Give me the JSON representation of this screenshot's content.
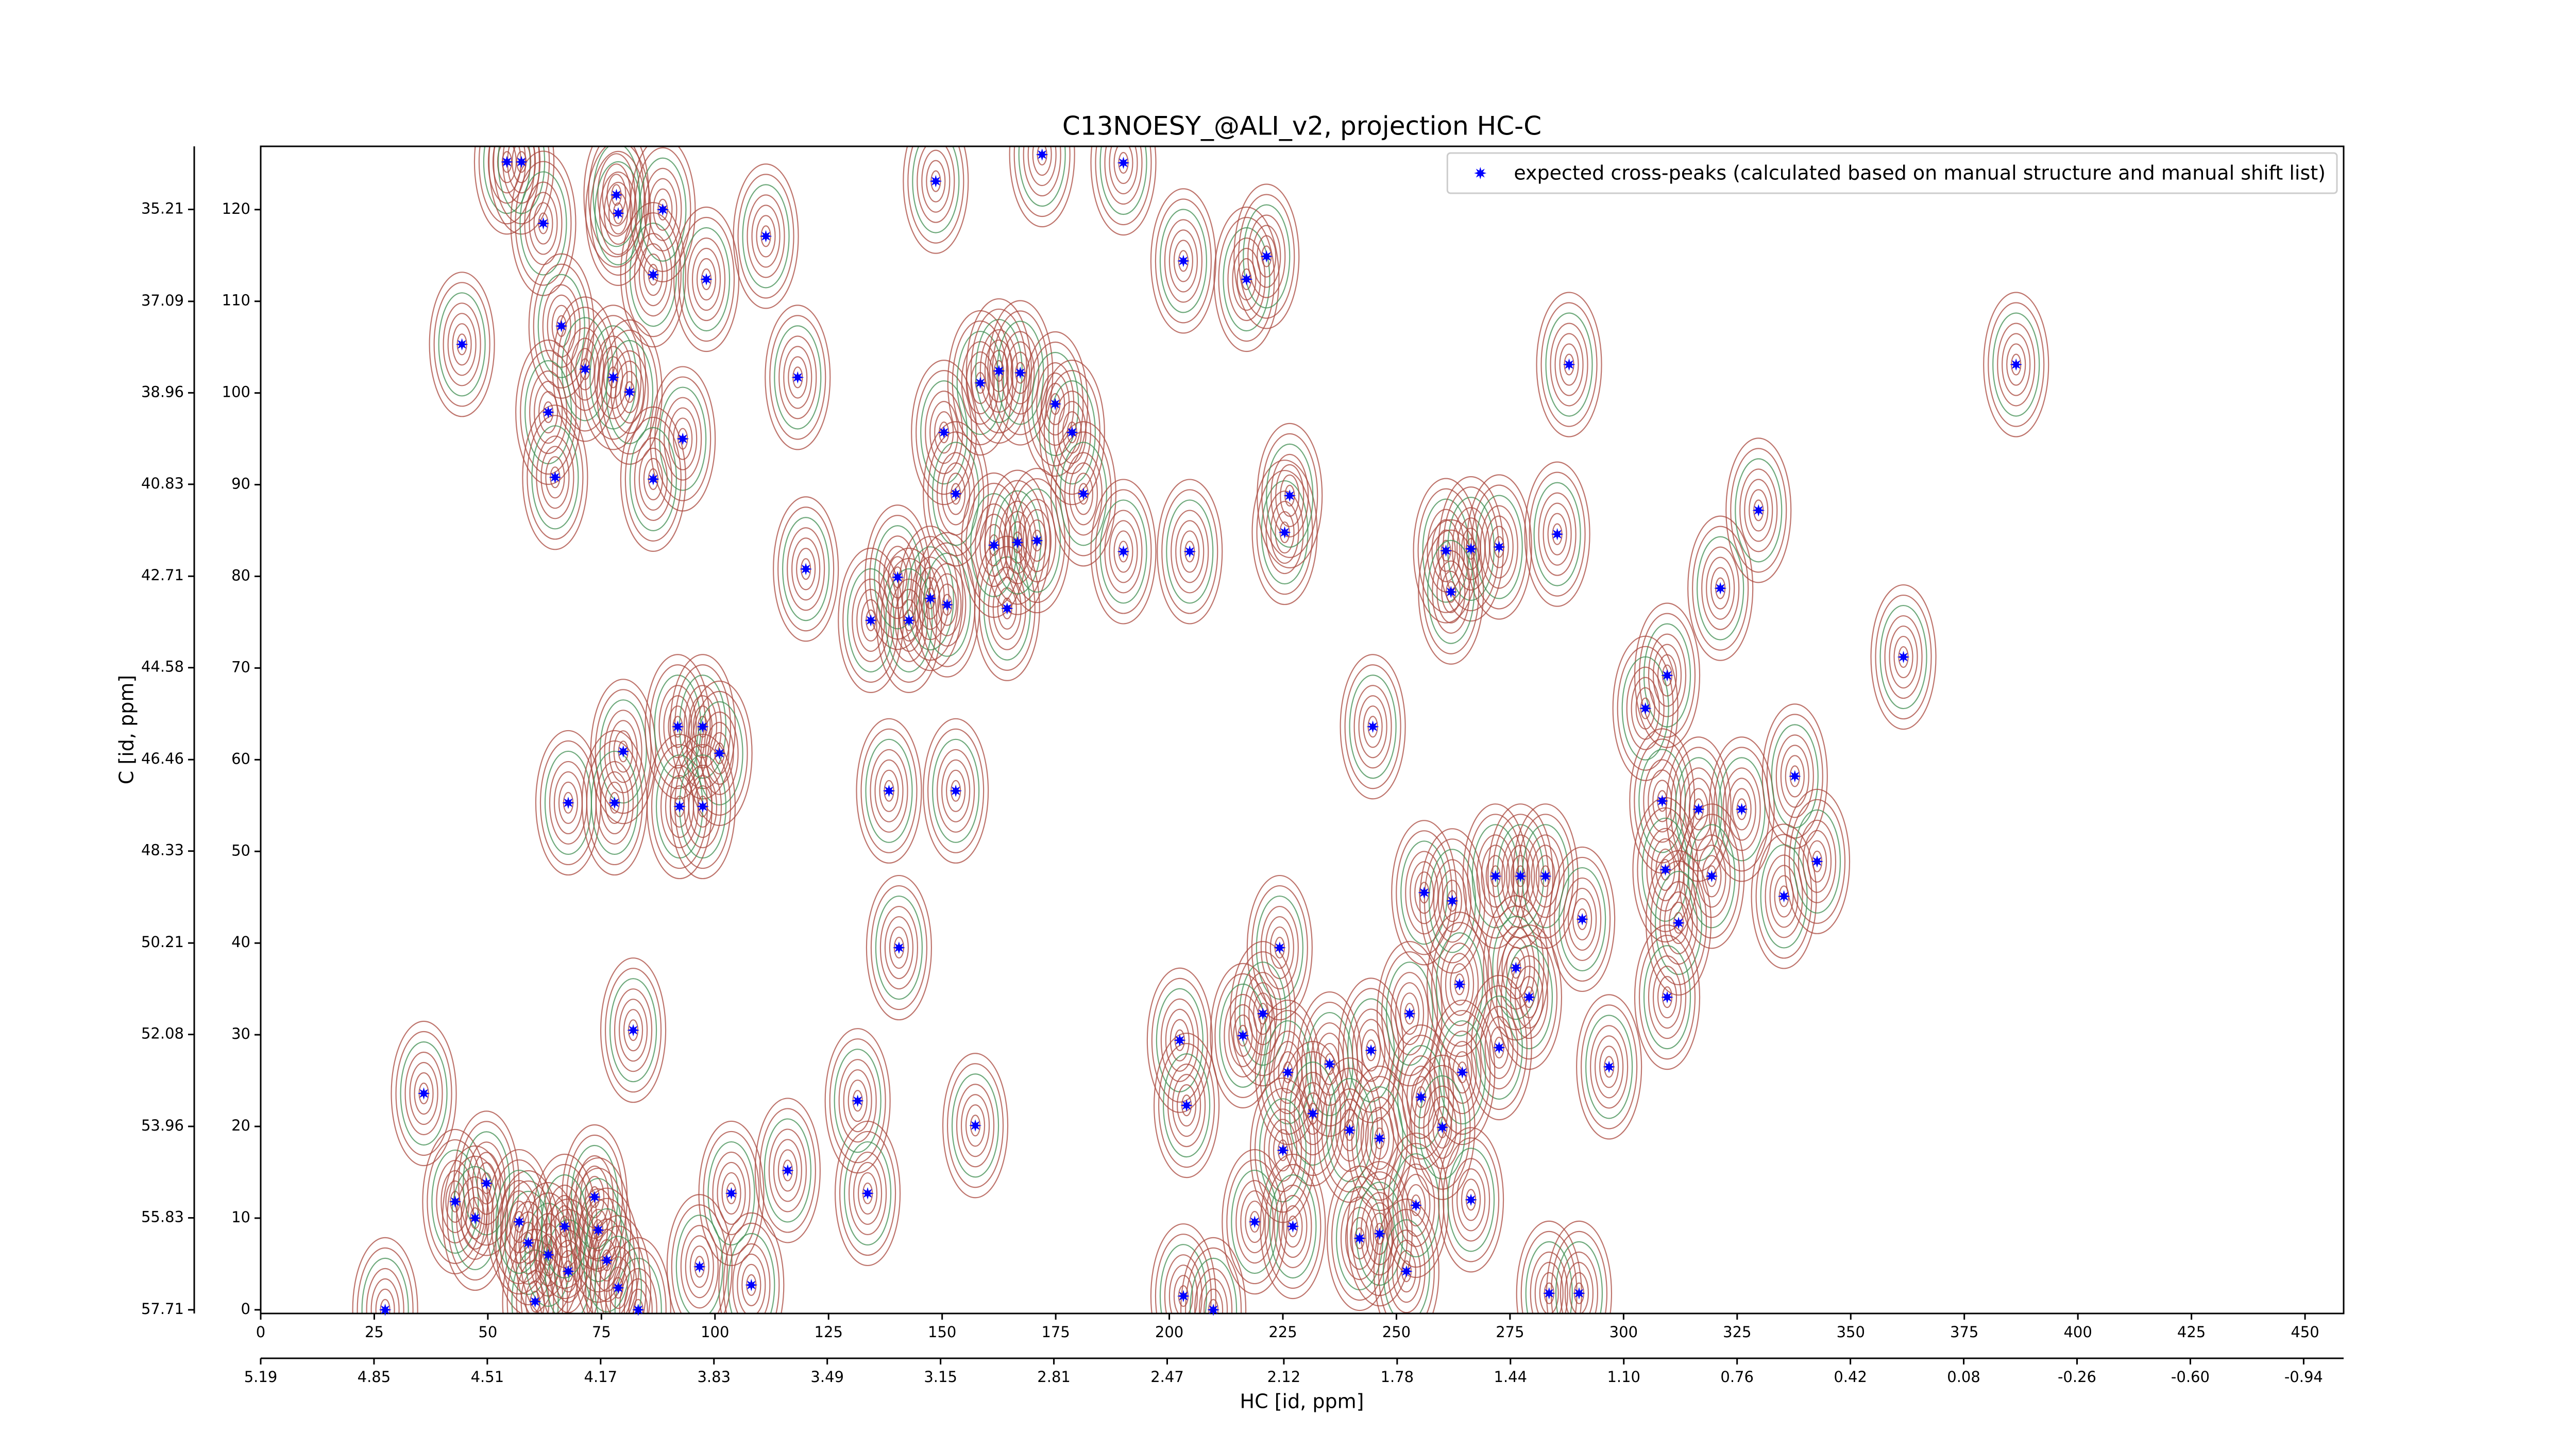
{
  "chart_data": {
    "type": "scatter",
    "title": "C13NOESY_@ALI_v2, projection HC-C",
    "xlabel": "HC [id, ppm]",
    "ylabel": "C [id, ppm]",
    "xlim": [
      0,
      458.5
    ],
    "xticks": [
      0,
      25,
      50,
      75,
      100,
      125,
      150,
      175,
      200,
      225,
      250,
      275,
      300,
      325,
      350,
      375,
      400,
      425,
      450
    ],
    "x2lim": [
      5.19,
      -1.06
    ],
    "x2ticks": [
      5.19,
      4.85,
      4.51,
      4.17,
      3.83,
      3.49,
      3.15,
      2.81,
      2.47,
      2.12,
      1.78,
      1.44,
      {
        "value": 1.1,
        "label": "1.10"
      },
      0.76,
      0.42,
      0.08,
      -0.26,
      {
        "value": -0.6,
        "label": "-0.60"
      },
      -0.94
    ],
    "ylim": [
      -0.4,
      126.9
    ],
    "yticks": [
      0,
      10,
      20,
      30,
      40,
      50,
      60,
      70,
      80,
      90,
      100,
      110,
      120
    ],
    "y2lim": [
      57.785,
      33.92
    ],
    "y2ticks": [
      57.71,
      55.83,
      53.96,
      52.08,
      50.21,
      48.33,
      46.46,
      44.58,
      42.71,
      40.83,
      38.96,
      37.09,
      35.21
    ],
    "legend": "upper right",
    "series": [
      {
        "name": "expected cross-peaks (calculated based on manual structure and manual shift list)",
        "color": "#0000ff",
        "x": [
          27.4,
          35.9,
          44.3,
          54.2,
          57.4,
          62.2,
          66.2,
          71.4,
          63.3,
          64.8,
          77.6,
          81.2,
          86.4,
          78.3,
          78.7,
          88.5,
          98.1,
          92.9,
          86.4,
          111.2,
          118.2,
          79.8,
          67.7,
          77.9,
          91.8,
          97.3,
          101.0,
          92.2,
          97.3,
          120.0,
          134.3,
          140.2,
          142.7,
          147.4,
          151.1,
          164.3,
          150.4,
          153.0,
          148.6,
          161.4,
          166.6,
          170.9,
          158.4,
          162.5,
          167.2,
          174.9,
          178.6,
          181.1,
          172.0,
          189.9,
          203.1,
          217.0,
          221.4,
          189.9,
          204.5,
          225.4,
          226.5,
          138.3,
          153.0,
          140.5,
          244.8,
          288.0,
          386.4,
          256.1,
          262.3,
          271.8,
          277.3,
          282.8,
          290.9,
          260.9,
          266.4,
          272.6,
          285.4,
          262.0,
          321.3,
          329.7,
          361.6,
          309.6,
          304.8,
          308.5,
          316.5,
          326.0,
          337.7,
          309.2,
          319.4,
          312.1,
          335.3,
          342.6,
          309.6,
          224.3,
          220.6,
          216.2,
          202.3,
          203.8,
          226.1,
          235.3,
          244.4,
          252.9,
          263.9,
          276.3,
          279.2,
          272.6,
          296.8,
          264.5,
          255.4,
          260.1,
          231.6,
          239.7,
          246.3,
          225.0,
          218.8,
          227.2,
          241.9,
          246.3,
          252.2,
          254.3,
          266.4,
          203.1,
          209.7,
          283.6,
          290.2,
          157.3,
          131.4,
          133.6,
          116.0,
          103.6,
          108.0,
          96.6,
          83.1,
          82.0,
          42.8,
          49.7,
          47.2,
          58.9,
          60.4,
          63.3,
          67.7,
          73.5,
          74.3,
          76.2,
          78.7,
          56.9,
          66.9
        ],
        "values": [
          0,
          23.6,
          105.3,
          125.2,
          125.2,
          118.5,
          107.3,
          102.6,
          97.9,
          90.8,
          101.7,
          100.1,
          112.9,
          121.6,
          119.6,
          120.0,
          112.4,
          95.0,
          90.6,
          117.1,
          101.7,
          60.9,
          55.3,
          55.3,
          63.6,
          63.6,
          60.7,
          54.9,
          54.9,
          80.8,
          75.2,
          79.9,
          75.2,
          77.6,
          76.9,
          76.5,
          95.7,
          89.0,
          123.1,
          83.4,
          83.7,
          83.9,
          101.1,
          102.4,
          102.2,
          98.8,
          95.7,
          89.0,
          126.0,
          125.1,
          114.4,
          112.4,
          114.9,
          82.7,
          82.7,
          84.8,
          88.8,
          56.6,
          56.6,
          39.5,
          63.6,
          103.1,
          103.1,
          45.5,
          44.6,
          47.3,
          47.3,
          47.3,
          42.6,
          82.8,
          83.0,
          83.2,
          84.6,
          78.3,
          78.7,
          87.2,
          71.2,
          69.2,
          65.6,
          55.5,
          54.6,
          54.6,
          58.2,
          48.0,
          47.3,
          42.2,
          45.1,
          48.9,
          34.1,
          39.5,
          32.3,
          29.9,
          29.4,
          22.3,
          25.9,
          26.8,
          28.3,
          32.3,
          35.5,
          37.3,
          34.1,
          28.6,
          26.5,
          25.9,
          23.2,
          19.9,
          21.4,
          19.6,
          18.7,
          17.4,
          9.6,
          9.1,
          7.8,
          8.3,
          4.2,
          11.4,
          12.0,
          1.5,
          0,
          1.8,
          1.8,
          20.1,
          22.8,
          12.7,
          15.2,
          12.7,
          2.7,
          4.7,
          0,
          30.5,
          11.8,
          13.8,
          10.0,
          7.3,
          0.9,
          6.0,
          4.2,
          12.3,
          8.7,
          5.4,
          2.4,
          9.6,
          9.1
        ]
      }
    ]
  }
}
